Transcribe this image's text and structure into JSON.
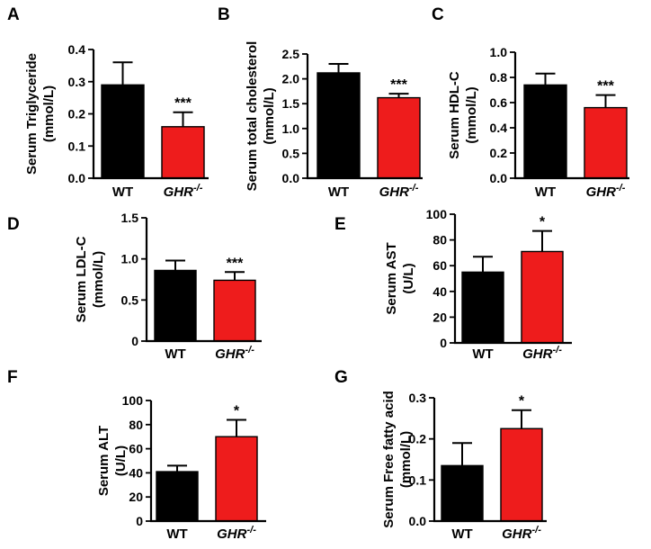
{
  "figure": {
    "colors": {
      "wt": "#000000",
      "ghr": "#ee1c1c"
    }
  },
  "chart_data": [
    {
      "panel": "A",
      "type": "bar",
      "categories": [
        "WT",
        "GHR"
      ],
      "category_superscripts": [
        "",
        "-/-"
      ],
      "ylabel_lines": [
        "Serum Triglyceride",
        "(mmol/L)"
      ],
      "ylim": [
        0,
        0.4
      ],
      "yticks": [
        0,
        0.1,
        0.2,
        0.3,
        0.4
      ],
      "ytick_labels": [
        "0.0",
        "0.1",
        "0.2",
        "0.3",
        "0.4"
      ],
      "values": [
        0.29,
        0.16
      ],
      "errors": [
        0.07,
        0.045
      ],
      "significance": [
        "",
        "***"
      ]
    },
    {
      "panel": "B",
      "type": "bar",
      "categories": [
        "WT",
        "GHR"
      ],
      "category_superscripts": [
        "",
        "-/-"
      ],
      "ylabel_lines": [
        "Serum  total cholesterol",
        "(mmol/L)"
      ],
      "ylim": [
        0,
        2.5
      ],
      "yticks": [
        0,
        0.5,
        1.0,
        1.5,
        2.0,
        2.5
      ],
      "ytick_labels": [
        "0.0",
        "0.5",
        "1.0",
        "1.5",
        "2.0",
        "2.5"
      ],
      "values": [
        2.12,
        1.62
      ],
      "errors": [
        0.18,
        0.08
      ],
      "significance": [
        "",
        "***"
      ]
    },
    {
      "panel": "C",
      "type": "bar",
      "categories": [
        "WT",
        "GHR"
      ],
      "category_superscripts": [
        "",
        "-/-"
      ],
      "ylabel_lines": [
        "Serum HDL-C",
        "(mmol/L)"
      ],
      "ylim": [
        0,
        1.0
      ],
      "yticks": [
        0,
        0.2,
        0.4,
        0.6,
        0.8,
        1.0
      ],
      "ytick_labels": [
        "0.0",
        "0.2",
        "0.4",
        "0.6",
        "0.8",
        "1.0"
      ],
      "values": [
        0.74,
        0.56
      ],
      "errors": [
        0.09,
        0.1
      ],
      "significance": [
        "",
        "***"
      ]
    },
    {
      "panel": "D",
      "type": "bar",
      "categories": [
        "WT",
        "GHR"
      ],
      "category_superscripts": [
        "",
        "-/-"
      ],
      "ylabel_lines": [
        "Serum LDL-C",
        "(mmol/L)"
      ],
      "ylim": [
        0,
        1.5
      ],
      "yticks": [
        0,
        0.5,
        1.0,
        1.5
      ],
      "ytick_labels": [
        "0",
        "0.5",
        "1.0",
        "1.5"
      ],
      "values": [
        0.86,
        0.74
      ],
      "errors": [
        0.12,
        0.1
      ],
      "significance": [
        "",
        "***"
      ]
    },
    {
      "panel": "E",
      "type": "bar",
      "categories": [
        "WT",
        "GHR"
      ],
      "category_superscripts": [
        "",
        "-/-"
      ],
      "ylabel_lines": [
        "Serum AST",
        "(U/L)"
      ],
      "ylim": [
        0,
        100
      ],
      "yticks": [
        0,
        20,
        40,
        60,
        80,
        100
      ],
      "ytick_labels": [
        "0",
        "20",
        "40",
        "60",
        "80",
        "100"
      ],
      "values": [
        55,
        71
      ],
      "errors": [
        12,
        16
      ],
      "significance": [
        "",
        "*"
      ]
    },
    {
      "panel": "F",
      "type": "bar",
      "categories": [
        "WT",
        "GHR"
      ],
      "category_superscripts": [
        "",
        "-/-"
      ],
      "ylabel_lines": [
        "Serum ALT",
        "(U/L)"
      ],
      "ylim": [
        0,
        100
      ],
      "yticks": [
        0,
        20,
        40,
        60,
        80,
        100
      ],
      "ytick_labels": [
        "0",
        "20",
        "40",
        "60",
        "80",
        "100"
      ],
      "values": [
        41,
        70
      ],
      "errors": [
        5,
        14
      ],
      "significance": [
        "",
        "*"
      ]
    },
    {
      "panel": "G",
      "type": "bar",
      "categories": [
        "WT",
        "GHR"
      ],
      "category_superscripts": [
        "",
        "-/-"
      ],
      "ylabel_lines": [
        "Serum Free fatty acid",
        "(mmol/L)"
      ],
      "ylim": [
        0,
        0.3
      ],
      "yticks": [
        0,
        0.1,
        0.2,
        0.3
      ],
      "ytick_labels": [
        "0.0",
        "0.1",
        "0.2",
        "0.3"
      ],
      "values": [
        0.135,
        0.225
      ],
      "errors": [
        0.055,
        0.045
      ],
      "significance": [
        "",
        "*"
      ]
    }
  ]
}
